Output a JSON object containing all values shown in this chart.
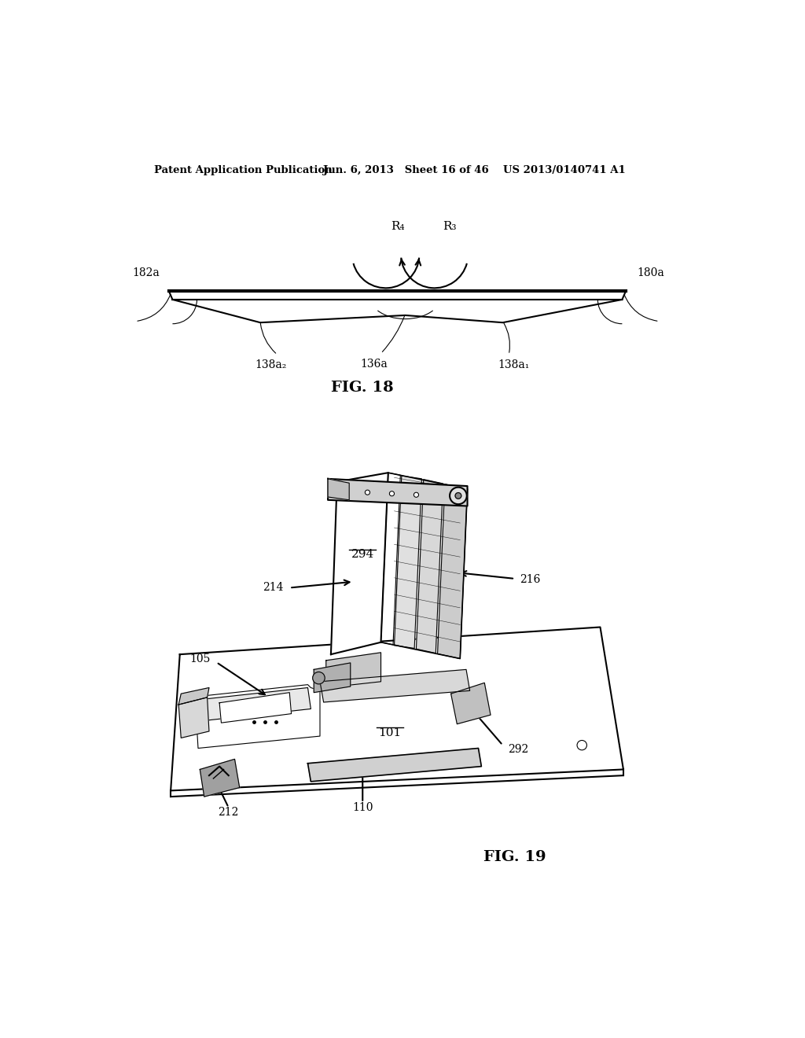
{
  "bg_color": "#ffffff",
  "header_left": "Patent Application Publication",
  "header_center": "Jun. 6, 2013   Sheet 16 of 46",
  "header_right": "US 2013/0140741 A1",
  "fig18_caption": "FIG. 18",
  "fig19_caption": "FIG. 19",
  "label_182a": "182a",
  "label_180a": "180a",
  "label_138a2": "138a₂",
  "label_136a": "136a",
  "label_138a1": "138a₁",
  "label_R4": "R₄",
  "label_R3": "R₃",
  "label_214": "214",
  "label_294": "294",
  "label_216": "216",
  "label_105": "105",
  "label_101": "101",
  "label_212": "212",
  "label_110": "110",
  "label_292": "292"
}
